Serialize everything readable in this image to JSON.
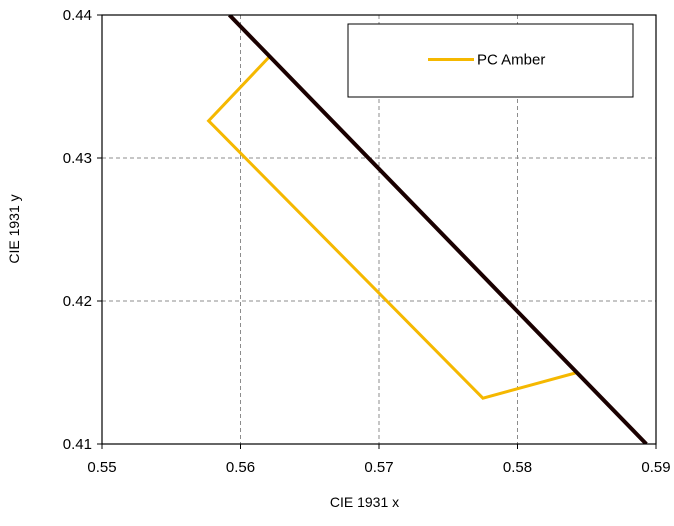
{
  "chart_data": {
    "type": "line",
    "xlabel": "CIE 1931 x",
    "ylabel": "CIE 1931 y",
    "xlim": [
      0.55,
      0.59
    ],
    "ylim": [
      0.41,
      0.44
    ],
    "x_ticks": [
      "0.55",
      "0.56",
      "0.57",
      "0.58",
      "0.59"
    ],
    "y_ticks": [
      "0.41",
      "0.42",
      "0.43",
      "0.44"
    ],
    "grid": true,
    "legend_position": "top-right",
    "series": [
      {
        "name": "PC Amber",
        "color": "#f5b800",
        "in_legend": true,
        "closed": false,
        "points": [
          [
            0.5621,
            0.4371
          ],
          [
            0.5577,
            0.4326
          ],
          [
            0.5775,
            0.4132
          ],
          [
            0.5843,
            0.415
          ]
        ]
      },
      {
        "name": "",
        "color": "#1a0000",
        "in_legend": false,
        "closed": false,
        "points": [
          [
            0.5592,
            0.44
          ],
          [
            0.5893,
            0.41
          ]
        ]
      }
    ]
  }
}
